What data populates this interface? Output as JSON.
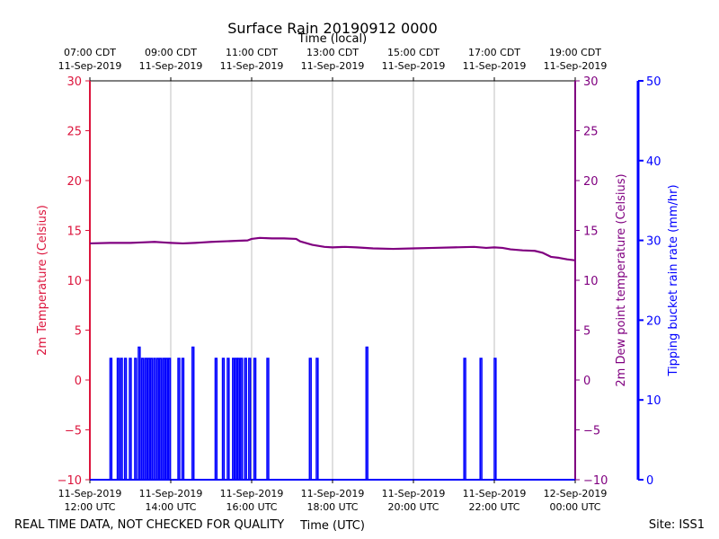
{
  "chart_data": {
    "type": "line",
    "title": "Surface Rain 20190912 0000",
    "footer_left": "REAL TIME DATA, NOT CHECKED FOR QUALITY",
    "footer_right": "Site: ISS1",
    "x_range_utc_hours": [
      12,
      24
    ],
    "x_bottom_label": "Time (UTC)",
    "x_top_label": "Time (local)",
    "x_ticks": [
      {
        "hour": 12,
        "utc_date": "11-Sep-2019",
        "utc_time": "12:00 UTC",
        "local_time": "07:00 CDT",
        "local_date": "11-Sep-2019"
      },
      {
        "hour": 14,
        "utc_date": "11-Sep-2019",
        "utc_time": "14:00 UTC",
        "local_time": "09:00 CDT",
        "local_date": "11-Sep-2019"
      },
      {
        "hour": 16,
        "utc_date": "11-Sep-2019",
        "utc_time": "16:00 UTC",
        "local_time": "11:00 CDT",
        "local_date": "11-Sep-2019"
      },
      {
        "hour": 18,
        "utc_date": "11-Sep-2019",
        "utc_time": "18:00 UTC",
        "local_time": "13:00 CDT",
        "local_date": "11-Sep-2019"
      },
      {
        "hour": 20,
        "utc_date": "11-Sep-2019",
        "utc_time": "20:00 UTC",
        "local_time": "15:00 CDT",
        "local_date": "11-Sep-2019"
      },
      {
        "hour": 22,
        "utc_date": "11-Sep-2019",
        "utc_time": "22:00 UTC",
        "local_time": "17:00 CDT",
        "local_date": "11-Sep-2019"
      },
      {
        "hour": 24,
        "utc_date": "12-Sep-2019",
        "utc_time": "00:00 UTC",
        "local_time": "19:00 CDT",
        "local_date": "11-Sep-2019"
      }
    ],
    "y_left": {
      "label": "2m Temperature (Celsius)",
      "range": [
        -10,
        30
      ],
      "ticks": [
        -10,
        -5,
        0,
        5,
        10,
        15,
        20,
        25,
        30
      ],
      "color": "#dc143c"
    },
    "y_right_inner": {
      "label": "2m Dew point temperature (Celsius)",
      "range": [
        -10,
        30
      ],
      "ticks": [
        -10,
        -5,
        0,
        5,
        10,
        15,
        20,
        25,
        30
      ],
      "color": "#800080"
    },
    "y_right_outer": {
      "label": "Tipping bucket rain rate (mm/hr)",
      "range": [
        0,
        50
      ],
      "ticks": [
        0,
        10,
        20,
        30,
        40,
        50
      ],
      "color": "#0000ff"
    },
    "series": [
      {
        "name": "2m Dew point temperature",
        "axis": "y_right_inner",
        "color": "#800080",
        "points": [
          [
            12.0,
            13.7
          ],
          [
            12.5,
            13.75
          ],
          [
            13.0,
            13.75
          ],
          [
            13.3,
            13.8
          ],
          [
            13.6,
            13.85
          ],
          [
            13.8,
            13.8
          ],
          [
            14.0,
            13.75
          ],
          [
            14.3,
            13.7
          ],
          [
            14.6,
            13.75
          ],
          [
            14.8,
            13.8
          ],
          [
            15.0,
            13.85
          ],
          [
            15.3,
            13.9
          ],
          [
            15.6,
            13.95
          ],
          [
            15.9,
            14.0
          ],
          [
            16.0,
            14.15
          ],
          [
            16.2,
            14.25
          ],
          [
            16.5,
            14.2
          ],
          [
            16.8,
            14.2
          ],
          [
            17.1,
            14.15
          ],
          [
            17.2,
            13.9
          ],
          [
            17.5,
            13.55
          ],
          [
            17.8,
            13.35
          ],
          [
            18.0,
            13.3
          ],
          [
            18.3,
            13.35
          ],
          [
            18.6,
            13.3
          ],
          [
            19.0,
            13.2
          ],
          [
            19.5,
            13.15
          ],
          [
            20.0,
            13.2
          ],
          [
            20.5,
            13.25
          ],
          [
            21.0,
            13.3
          ],
          [
            21.5,
            13.35
          ],
          [
            21.8,
            13.25
          ],
          [
            22.0,
            13.3
          ],
          [
            22.2,
            13.25
          ],
          [
            22.4,
            13.1
          ],
          [
            22.7,
            13.0
          ],
          [
            23.0,
            12.95
          ],
          [
            23.2,
            12.75
          ],
          [
            23.4,
            12.35
          ],
          [
            23.6,
            12.25
          ],
          [
            23.8,
            12.1
          ],
          [
            24.0,
            12.0
          ]
        ]
      },
      {
        "name": "Tipping bucket rain rate",
        "axis": "y_right_outer",
        "color": "#0000ff",
        "baseline": 0,
        "spikes": [
          [
            12.52,
            15.2
          ],
          [
            12.7,
            15.2
          ],
          [
            12.78,
            15.2
          ],
          [
            12.88,
            15.2
          ],
          [
            13.0,
            15.2
          ],
          [
            13.13,
            15.2
          ],
          [
            13.22,
            16.6
          ],
          [
            13.3,
            15.2
          ],
          [
            13.38,
            15.2
          ],
          [
            13.45,
            15.2
          ],
          [
            13.52,
            15.2
          ],
          [
            13.6,
            15.2
          ],
          [
            13.68,
            15.2
          ],
          [
            13.75,
            15.2
          ],
          [
            13.83,
            15.2
          ],
          [
            13.9,
            15.2
          ],
          [
            13.97,
            15.2
          ],
          [
            14.2,
            15.2
          ],
          [
            14.3,
            15.2
          ],
          [
            14.55,
            16.6
          ],
          [
            15.12,
            15.2
          ],
          [
            15.3,
            15.2
          ],
          [
            15.42,
            15.2
          ],
          [
            15.55,
            15.2
          ],
          [
            15.62,
            15.2
          ],
          [
            15.68,
            15.2
          ],
          [
            15.75,
            15.2
          ],
          [
            15.85,
            15.2
          ],
          [
            15.95,
            15.2
          ],
          [
            16.08,
            15.2
          ],
          [
            16.4,
            15.2
          ],
          [
            17.45,
            15.2
          ],
          [
            17.62,
            15.2
          ],
          [
            18.85,
            16.6
          ],
          [
            21.27,
            15.2
          ],
          [
            21.67,
            15.2
          ],
          [
            22.02,
            15.2
          ]
        ]
      }
    ]
  }
}
